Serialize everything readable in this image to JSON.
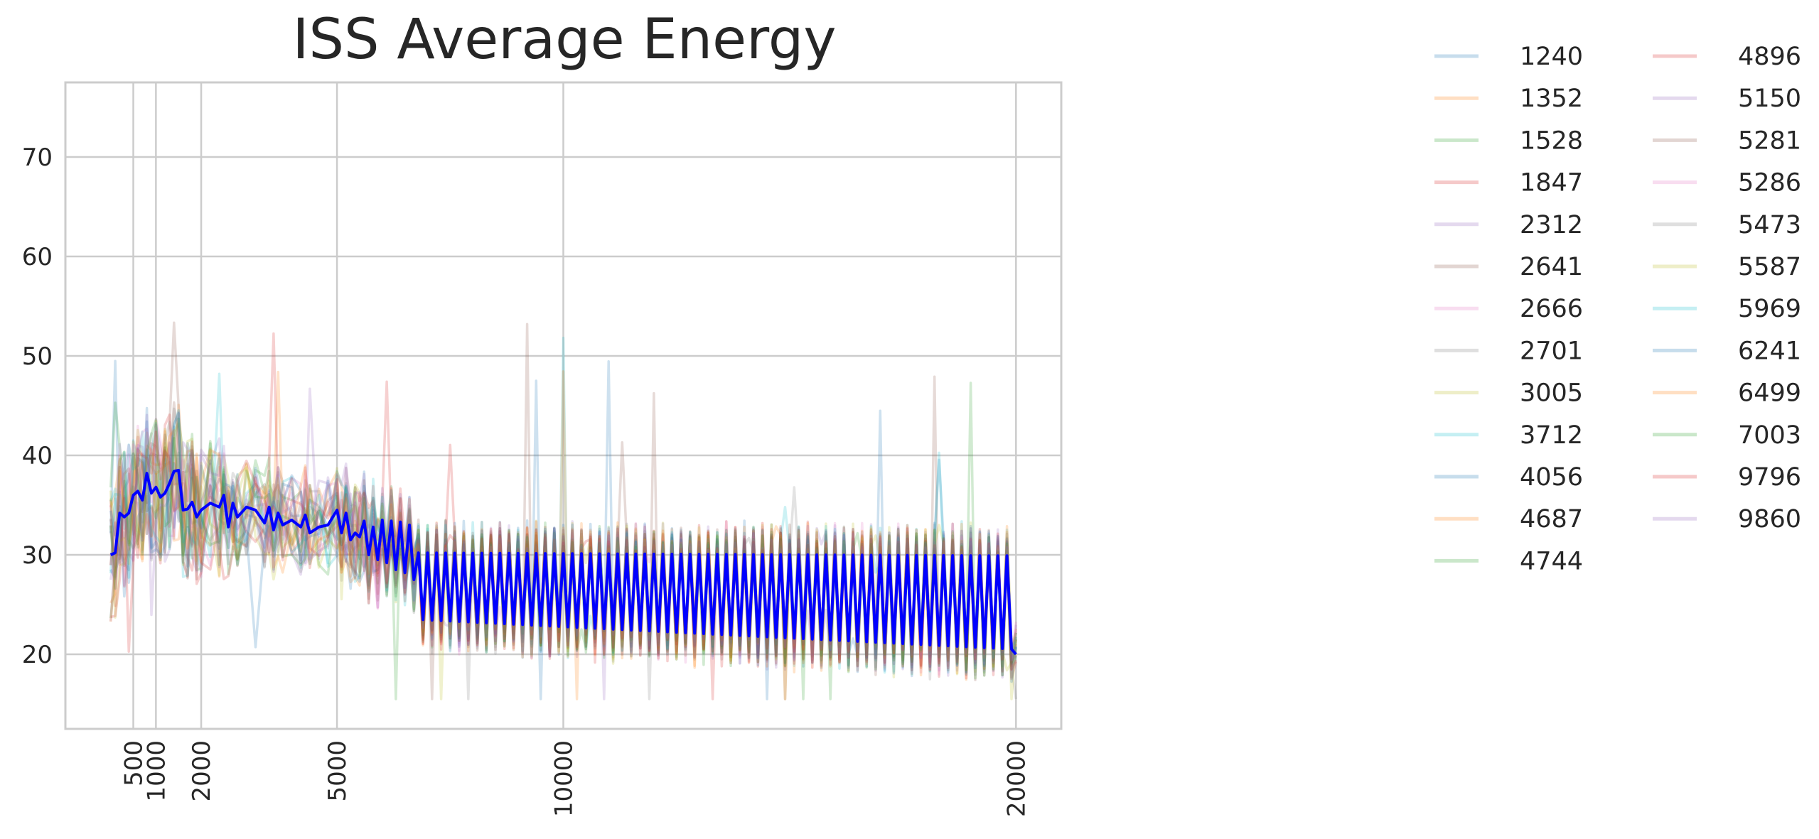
{
  "chart_data": {
    "type": "line",
    "title": "ISS Average Energy",
    "xlabel": "",
    "ylabel": "",
    "xlim": [
      -1000,
      21000
    ],
    "ylim": [
      12.5,
      77.5
    ],
    "x_ticks": [
      500,
      1000,
      2000,
      5000,
      10000,
      20000
    ],
    "y_ticks": [
      20,
      30,
      40,
      50,
      60,
      70
    ],
    "grid": true,
    "legend_position": "outside-right",
    "legend_columns": 2,
    "colors": {
      "average": "#0000ff",
      "palette": [
        "#1f77b4",
        "#ff7f0e",
        "#2ca02c",
        "#d62728",
        "#9467bd",
        "#8c564b",
        "#e377c2",
        "#7f7f7f",
        "#bcbd22",
        "#17becf"
      ],
      "grid": "#cccccc",
      "axes_edge": "#cccccc",
      "text": "#262626"
    },
    "series_names": [
      "1240",
      "1352",
      "1528",
      "1847",
      "2312",
      "2641",
      "2666",
      "2701",
      "3005",
      "3712",
      "4056",
      "4687",
      "4744",
      "4896",
      "5150",
      "5281",
      "5286",
      "5473",
      "5587",
      "5969",
      "6241",
      "6499",
      "7003",
      "9796",
      "9860"
    ],
    "average_series": {
      "x_start": 0,
      "x_step": 100,
      "zigzag_from_x": 6800,
      "zigzag_high": 30.2,
      "zigzag_low_start": 23.5,
      "zigzag_low_end": 20.5,
      "x_end": 20000,
      "y_end": 20,
      "keypoints": [
        [
          0,
          30
        ],
        [
          100,
          30.2
        ],
        [
          200,
          34.2
        ],
        [
          300,
          33.8
        ],
        [
          400,
          34.2
        ],
        [
          500,
          36
        ],
        [
          600,
          36.4
        ],
        [
          700,
          35.5
        ],
        [
          800,
          38.2
        ],
        [
          900,
          36.2
        ],
        [
          1000,
          36.8
        ],
        [
          1100,
          35.8
        ],
        [
          1200,
          36.2
        ],
        [
          1300,
          37.2
        ],
        [
          1400,
          38.4
        ],
        [
          1500,
          38.5
        ],
        [
          1600,
          34.5
        ],
        [
          1700,
          34.6
        ],
        [
          1800,
          35.3
        ],
        [
          1900,
          33.8
        ],
        [
          2000,
          34.5
        ],
        [
          2200,
          35.2
        ],
        [
          2400,
          34.8
        ],
        [
          2500,
          36
        ],
        [
          2600,
          32.8
        ],
        [
          2700,
          35.2
        ],
        [
          2800,
          33.8
        ],
        [
          3000,
          34.8
        ],
        [
          3200,
          34.5
        ],
        [
          3400,
          33.2
        ],
        [
          3500,
          34.8
        ],
        [
          3600,
          32.5
        ],
        [
          3700,
          34.2
        ],
        [
          3800,
          33
        ],
        [
          4000,
          33.5
        ],
        [
          4200,
          32.8
        ],
        [
          4300,
          34
        ],
        [
          4400,
          32.2
        ],
        [
          4600,
          32.8
        ],
        [
          4800,
          33
        ],
        [
          5000,
          34.5
        ],
        [
          5100,
          32.2
        ],
        [
          5200,
          34.2
        ],
        [
          5300,
          31.5
        ],
        [
          5400,
          32.2
        ],
        [
          5500,
          31.8
        ],
        [
          5600,
          33.4
        ],
        [
          5700,
          30
        ],
        [
          5800,
          32.8
        ],
        [
          5900,
          29.5
        ],
        [
          6000,
          33.5
        ],
        [
          6100,
          29.2
        ],
        [
          6200,
          33.4
        ],
        [
          6300,
          28.5
        ],
        [
          6400,
          33.3
        ],
        [
          6500,
          28.2
        ],
        [
          6600,
          33
        ],
        [
          6700,
          27.5
        ]
      ]
    }
  }
}
